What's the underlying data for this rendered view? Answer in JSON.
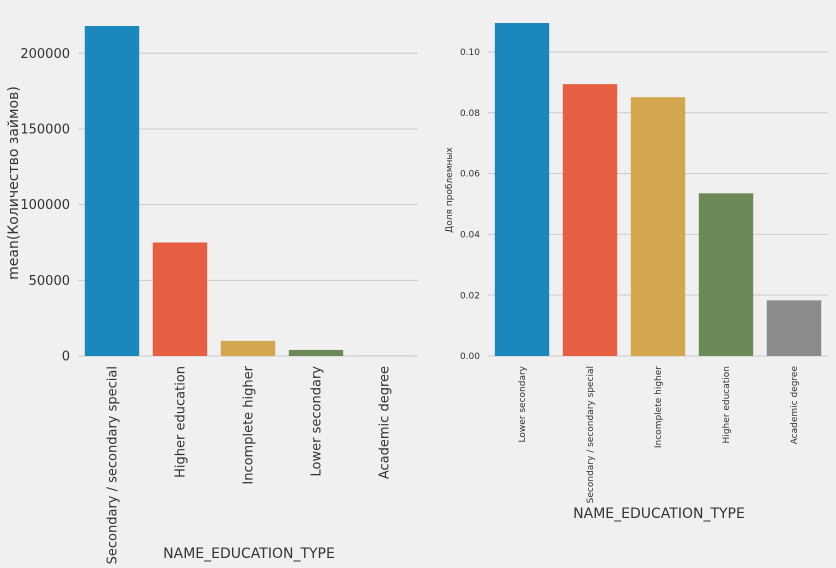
{
  "chart_data": [
    {
      "type": "bar",
      "categories": [
        "Secondary / secondary special",
        "Higher education",
        "Incomplete higher",
        "Lower secondary",
        "Academic degree"
      ],
      "values": [
        218000,
        75000,
        10000,
        4000,
        100
      ],
      "colors": [
        "#1a87bd",
        "#e65f43",
        "#d3a74d",
        "#6b8a57",
        "#8b8b8b"
      ],
      "xlabel": "NAME_EDUCATION_TYPE",
      "ylabel": "mean(Количество займов)",
      "ylim": [
        0,
        220000
      ],
      "yticks": [
        0,
        50000,
        100000,
        150000,
        200000
      ],
      "ytick_labels": [
        "0",
        "50000",
        "100000",
        "150000",
        "200000"
      ],
      "grid": true
    },
    {
      "type": "bar",
      "categories": [
        "Lower secondary",
        "Secondary / secondary special",
        "Incomplete higher",
        "Higher education",
        "Academic degree"
      ],
      "values": [
        0.1095,
        0.0894,
        0.0851,
        0.0535,
        0.0183
      ],
      "colors": [
        "#1a87bd",
        "#e65f43",
        "#d3a74d",
        "#6b8a57",
        "#8b8b8b"
      ],
      "xlabel": "NAME_EDUCATION_TYPE",
      "ylabel": "Доля проблемных",
      "ylim": [
        0,
        0.1095
      ],
      "yticks": [
        0,
        0.02,
        0.04,
        0.06,
        0.08,
        0.1
      ],
      "ytick_labels": [
        "0.00",
        "0.02",
        "0.04",
        "0.06",
        "0.08",
        "0.10"
      ],
      "grid": true
    }
  ]
}
